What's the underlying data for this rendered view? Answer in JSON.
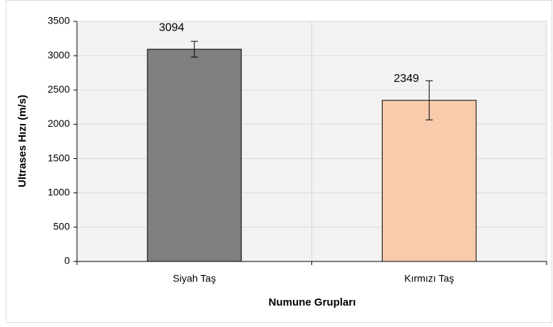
{
  "chart_data": {
    "type": "bar",
    "categories": [
      "Siyah Taş",
      "Kırmızı Taş"
    ],
    "values": [
      3094,
      2349
    ],
    "errors": [
      115,
      285
    ],
    "colors": [
      "#7f7f7f",
      "#f8cbad"
    ],
    "xlabel": "Numune Grupları",
    "ylabel": "Ultrases Hızı (m/s)",
    "ylim": [
      0,
      3500
    ],
    "yticks": [
      0,
      500,
      1000,
      1500,
      2000,
      2500,
      3000,
      3500
    ],
    "grid": true
  }
}
